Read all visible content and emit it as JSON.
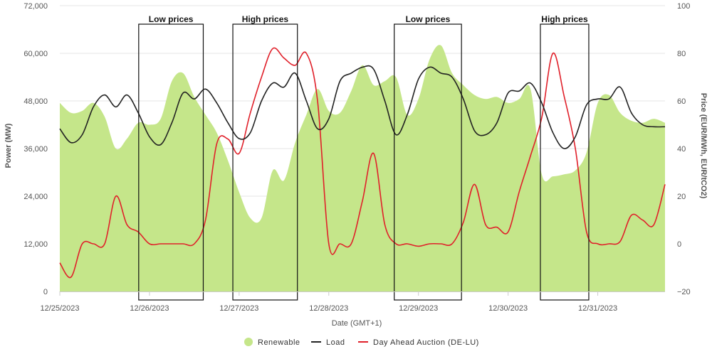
{
  "chart_data": {
    "type": "line",
    "xlabel": "Date (GMT+1)",
    "ylabel_left": "Power (MW)",
    "ylabel_right": "Price (EUR/MWh, EUR/tCO2)",
    "ylim_left": [
      0,
      72000
    ],
    "ylim_right": [
      -20,
      100
    ],
    "yticks_left": [
      "0",
      "12,000",
      "24,000",
      "36,000",
      "48,000",
      "60,000",
      "72,000"
    ],
    "yticks_right": [
      "−20",
      "0",
      "20",
      "40",
      "60",
      "80",
      "100"
    ],
    "xlim_days": [
      0,
      6.75
    ],
    "x_tick_labels": [
      "12/25/2023",
      "12/26/2023",
      "12/27/2023",
      "12/28/2023",
      "12/29/2023",
      "12/30/2023",
      "12/31/2023"
    ],
    "grid": "horizontal",
    "legend_position": "bottom-center",
    "colors": {
      "renewable": "#c5e68a",
      "load": "#222222",
      "price": "#e0202a",
      "grid": "#e6e6e6"
    },
    "series": [
      {
        "name": "Renewable",
        "kind": "area",
        "axis": "left",
        "x_days": [
          0,
          0.125,
          0.25,
          0.375,
          0.5,
          0.625,
          0.75,
          0.875,
          1,
          1.125,
          1.25,
          1.375,
          1.5,
          1.625,
          1.75,
          1.875,
          2,
          2.125,
          2.25,
          2.375,
          2.5,
          2.625,
          2.75,
          2.875,
          3,
          3.125,
          3.25,
          3.375,
          3.5,
          3.625,
          3.75,
          3.875,
          4,
          4.125,
          4.25,
          4.375,
          4.5,
          4.625,
          4.75,
          4.875,
          5,
          5.125,
          5.25,
          5.375,
          5.5,
          5.625,
          5.75,
          5.875,
          6,
          6.125,
          6.25,
          6.375,
          6.5,
          6.625,
          6.75
        ],
        "values": [
          47500,
          45000,
          45500,
          47500,
          44000,
          36000,
          38500,
          42500,
          42000,
          43500,
          53000,
          55000,
          49000,
          44500,
          40000,
          33000,
          25000,
          18500,
          18500,
          30500,
          28000,
          37500,
          44500,
          51000,
          45500,
          45000,
          50500,
          57000,
          52000,
          53000,
          54000,
          44500,
          48500,
          58500,
          62000,
          55000,
          52000,
          49500,
          48500,
          49000,
          47500,
          48500,
          51000,
          29500,
          29000,
          29500,
          30500,
          35000,
          47500,
          49500,
          45000,
          43000,
          42500,
          43500,
          42500
        ]
      },
      {
        "name": "Load",
        "kind": "line",
        "axis": "left",
        "x_days": [
          0,
          0.125,
          0.25,
          0.375,
          0.5,
          0.625,
          0.75,
          0.875,
          1,
          1.125,
          1.25,
          1.375,
          1.5,
          1.625,
          1.75,
          1.875,
          2,
          2.125,
          2.25,
          2.375,
          2.5,
          2.625,
          2.75,
          2.875,
          3,
          3.125,
          3.25,
          3.375,
          3.5,
          3.625,
          3.75,
          3.875,
          4,
          4.125,
          4.25,
          4.375,
          4.5,
          4.625,
          4.75,
          4.875,
          5,
          5.125,
          5.25,
          5.375,
          5.5,
          5.625,
          5.75,
          5.875,
          6,
          6.125,
          6.25,
          6.375,
          6.5,
          6.625,
          6.75
        ],
        "values": [
          41000,
          37500,
          39500,
          46500,
          49500,
          46500,
          49500,
          45000,
          39000,
          37000,
          42500,
          50000,
          48500,
          51000,
          47500,
          42500,
          38500,
          40000,
          48000,
          52500,
          51500,
          55000,
          48000,
          41000,
          43500,
          53000,
          55000,
          56500,
          56000,
          48000,
          39500,
          44500,
          53500,
          56500,
          55000,
          54000,
          48500,
          40500,
          39500,
          42500,
          50000,
          50500,
          52500,
          47500,
          40000,
          36000,
          39000,
          47000,
          48500,
          48500,
          51500,
          45000,
          42000,
          41500,
          41500
        ]
      },
      {
        "name": "Day Ahead Auction (DE-LU)",
        "kind": "line",
        "axis": "right",
        "x_days": [
          0,
          0.125,
          0.25,
          0.375,
          0.5,
          0.625,
          0.75,
          0.875,
          1,
          1.125,
          1.25,
          1.375,
          1.5,
          1.625,
          1.75,
          1.875,
          2,
          2.125,
          2.25,
          2.375,
          2.5,
          2.625,
          2.75,
          2.875,
          3,
          3.125,
          3.25,
          3.375,
          3.5,
          3.625,
          3.75,
          3.875,
          4,
          4.125,
          4.25,
          4.375,
          4.5,
          4.625,
          4.75,
          4.875,
          5,
          5.125,
          5.25,
          5.375,
          5.5,
          5.625,
          5.75,
          5.875,
          6,
          6.125,
          6.25,
          6.375,
          6.5,
          6.625,
          6.75
        ],
        "values": [
          -8,
          -14,
          0,
          0,
          0,
          20,
          8,
          5,
          0,
          0,
          0,
          0,
          0,
          10,
          42,
          44,
          38,
          55,
          70,
          82,
          78,
          75,
          80,
          60,
          0,
          0,
          0,
          18,
          38,
          8,
          0,
          0,
          -1,
          0,
          0,
          0,
          9,
          25,
          8,
          7,
          5,
          22,
          37,
          53,
          80,
          62,
          40,
          5,
          0,
          0,
          1,
          12,
          10,
          8,
          25
        ]
      }
    ],
    "annotations": [
      {
        "label": "Low prices",
        "range_days": [
          0.88,
          1.6
        ]
      },
      {
        "label": "High prices",
        "range_days": [
          1.93,
          2.65
        ]
      },
      {
        "label": "Low prices",
        "range_days": [
          3.73,
          4.48
        ]
      },
      {
        "label": "High prices",
        "range_days": [
          5.36,
          5.9
        ]
      }
    ]
  }
}
